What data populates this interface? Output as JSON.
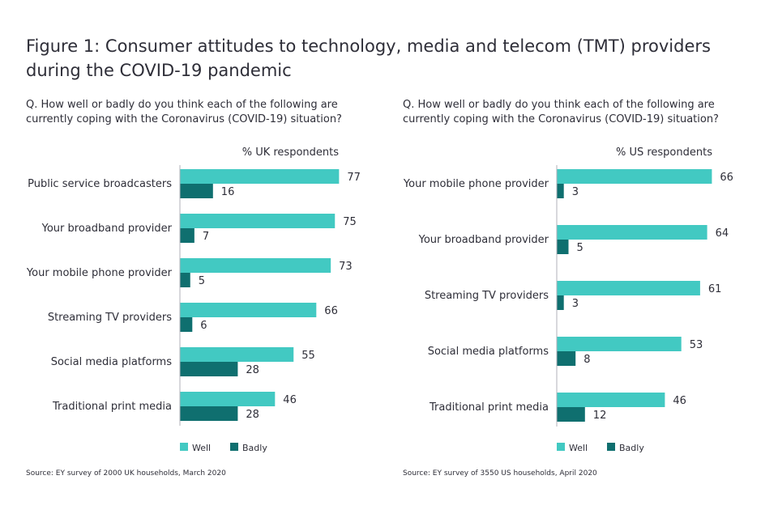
{
  "figure": {
    "title": "Figure 1: Consumer attitudes to technology, media and telecom (TMT) providers during the COVID-19 pandemic"
  },
  "colors": {
    "well": "#42c9c2",
    "badly": "#0f6f6f",
    "text": "#2e2e38"
  },
  "chart_data": [
    {
      "type": "bar",
      "orientation": "horizontal",
      "question": "Q. How well or badly do you think each of the following are currently coping with the Coronavirus (COVID-19) situation?",
      "axis_label": "% UK respondents",
      "categories": [
        "Public service broadcasters",
        "Your broadband provider",
        "Your mobile phone provider",
        "Streaming TV providers",
        "Social media platforms",
        "Traditional print media"
      ],
      "series": [
        {
          "name": "Well",
          "values": [
            77,
            75,
            73,
            66,
            55,
            46
          ]
        },
        {
          "name": "Badly",
          "values": [
            16,
            7,
            5,
            6,
            28,
            28
          ]
        }
      ],
      "legend": "bottom",
      "source": "Source: EY survey of 2000 UK households, March 2020"
    },
    {
      "type": "bar",
      "orientation": "horizontal",
      "question": "Q. How well or badly do you think each of the following are currently coping with the Coronavirus (COVID-19) situation?",
      "axis_label": "% US respondents",
      "categories": [
        "Your mobile phone provider",
        "Your broadband provider",
        "Streaming TV providers",
        "Social media platforms",
        "Traditional print media"
      ],
      "series": [
        {
          "name": "Well",
          "values": [
            66,
            64,
            61,
            53,
            46
          ]
        },
        {
          "name": "Badly",
          "values": [
            3,
            5,
            3,
            8,
            12
          ]
        }
      ],
      "legend": "bottom",
      "source": "Source: EY survey of 3550 US households, April 2020"
    }
  ]
}
